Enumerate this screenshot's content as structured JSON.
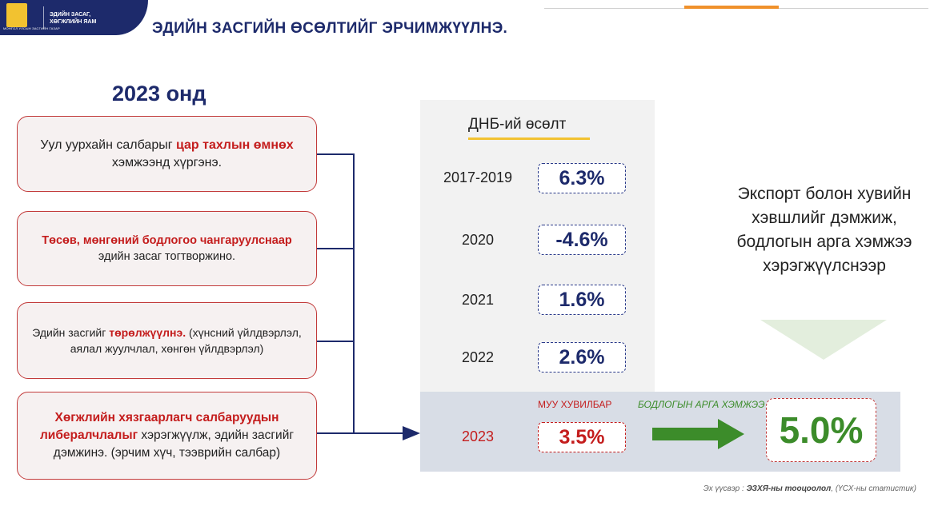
{
  "header": {
    "emblem_caption": "МОНГОЛ УЛСЫН ЗАСГИЙН ГАЗАР",
    "org_line1": "ЭДИЙН ЗАСАГ,",
    "org_line2": "ХӨГЖЛИЙН ЯАМ",
    "title": "ЭДИЙН ЗАСГИЙН ӨСӨЛТИЙГ ЭРЧИМЖҮҮЛНЭ.",
    "accent_color": "#f0912b",
    "brand_color": "#1d2a6b"
  },
  "left": {
    "heading": "2023 онд",
    "cards": [
      {
        "pre": "Уул уурхайн салбарыг ",
        "hl": "цар тахлын өмнөх",
        "post": " хэмжээнд хүргэнэ."
      },
      {
        "pre": "",
        "hl": "Төсөв, мөнгөний бодлогоо чангаруулснаар",
        "post": " эдийн засаг тогтворжино."
      },
      {
        "pre": "Эдийн засгийг ",
        "hl": "төрөлжүүлнэ.",
        "post": " (хүнсний үйлдвэрлэл, аялал жуулчлал, хөнгөн үйлдвэрлэл)"
      },
      {
        "pre": "",
        "hl": "Хөгжлийн хязгаарлагч салбаруудын либералчлалыг",
        "post": " хэрэгжүүлж, эдийн засгийг дэмжинэ. (эрчим хүч, тээврийн салбар)"
      }
    ]
  },
  "gdp": {
    "title": "ДНБ-ий өсөлт",
    "rows": [
      {
        "year": "2017-2019",
        "value": "6.3%"
      },
      {
        "year": "2020",
        "value": "-4.6%"
      },
      {
        "year": "2021",
        "value": "1.6%"
      },
      {
        "year": "2022",
        "value": "2.6%"
      }
    ],
    "y2023": {
      "year": "2023",
      "bad_label": "МУУ ХУВИЛБАР",
      "bad_value": "3.5%",
      "policy_label": "БОДЛОГЫН АРГА ХЭМЖЭЭ",
      "policy_value": "5.0%"
    }
  },
  "right": {
    "export_text": "Экспорт болон хувийн хэвшлийг дэмжиж, бодлогын арга хэмжээ хэрэгжүүлснээр"
  },
  "footer": {
    "source_pre": "Эх үүсвэр : ",
    "source_bold": "ЭЗХЯ-ны тооцоолол",
    "source_post": ", (ҮСХ-ны статистик)"
  }
}
